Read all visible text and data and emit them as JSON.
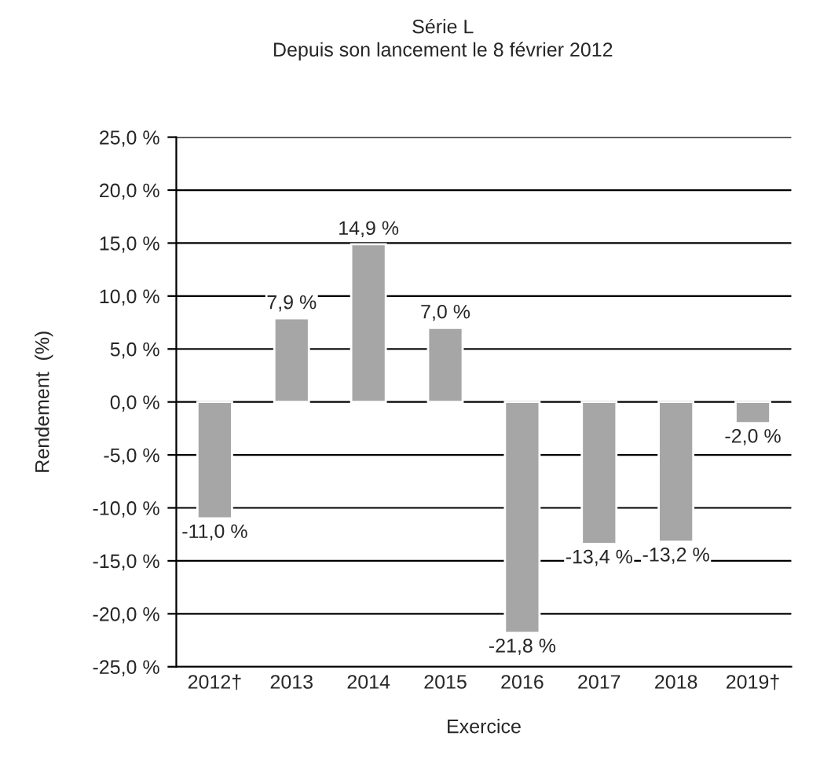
{
  "chart_data": {
    "type": "bar",
    "title": "Série L",
    "subtitle": "Depuis son lancement le 8 février 2012",
    "xlabel": "Exercice",
    "ylabel": "Rendement  (%)",
    "categories": [
      "2012†",
      "2013",
      "2014",
      "2015",
      "2016",
      "2017",
      "2018",
      "2019†"
    ],
    "values": [
      -11.0,
      7.9,
      14.9,
      7.0,
      -21.8,
      -13.4,
      -13.2,
      -2.0
    ],
    "value_labels": [
      "-11,0 %",
      "7,9 %",
      "14,9 %",
      "7,0 %",
      "-21,8 %",
      "-13,4 %",
      "-13,2 %",
      "-2,0 %"
    ],
    "color": "#a6a6a6",
    "ylim": [
      -25,
      25
    ],
    "yticks": [
      {
        "value": -25,
        "label": "-25,0 %"
      },
      {
        "value": -20,
        "label": "-20,0 %"
      },
      {
        "value": -15,
        "label": "-15,0 %"
      },
      {
        "value": -10,
        "label": "-10,0 %"
      },
      {
        "value": -5,
        "label": "-5,0 %"
      },
      {
        "value": 0,
        "label": "0,0 %"
      },
      {
        "value": 5,
        "label": "5,0 %"
      },
      {
        "value": 10,
        "label": "10,0 %"
      },
      {
        "value": 15,
        "label": "15,0 %"
      },
      {
        "value": 20,
        "label": "20,0 %"
      },
      {
        "value": 25,
        "label": "25,0 %"
      }
    ],
    "grid": "y"
  }
}
